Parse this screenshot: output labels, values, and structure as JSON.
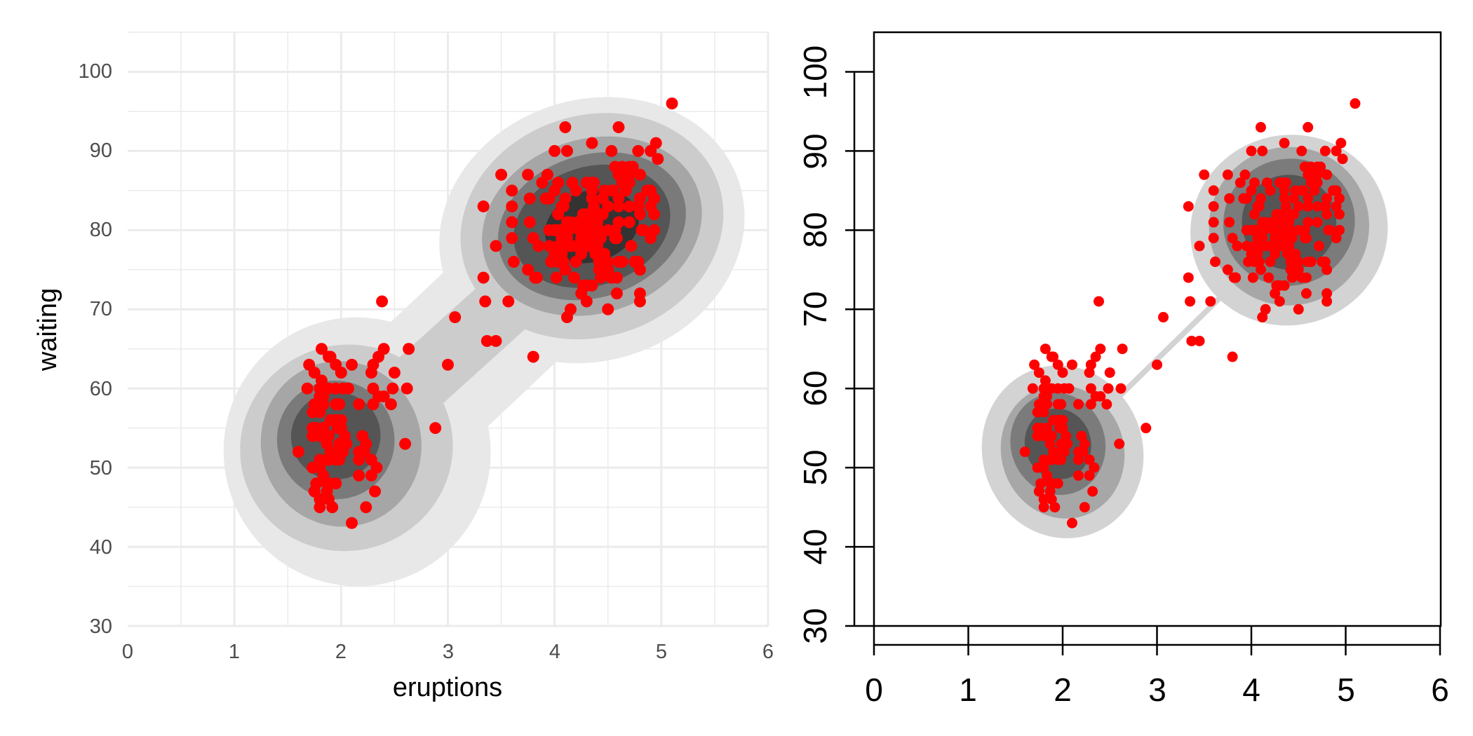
{
  "colors": {
    "background": "#ffffff",
    "grid": "#ebebeb",
    "points": "#ff0000",
    "left_levels": [
      "#e8e8e8",
      "#cccccc",
      "#a6a6a6",
      "#7a7a7a",
      "#555555",
      "#333333"
    ],
    "right_levels": [
      "#d3d3d3",
      "#a7a7a7",
      "#7b7b7b",
      "#555555"
    ]
  },
  "chart_data": [
    {
      "id": "left",
      "type": "scatter",
      "overlay": "filled density contours",
      "style": "ggplot minimal",
      "title": "",
      "xlabel": "eruptions",
      "ylabel": "waiting",
      "xlim": [
        0,
        6
      ],
      "ylim": [
        30,
        105
      ],
      "xticks": [
        "0",
        "1",
        "2",
        "3",
        "4",
        "5",
        "6"
      ],
      "yticks": [
        "30",
        "40",
        "50",
        "60",
        "70",
        "80",
        "90",
        "100"
      ],
      "grid": true
    },
    {
      "id": "right",
      "type": "scatter",
      "overlay": "filled density contours",
      "style": "base graphics boxed",
      "title": "",
      "xlabel": "",
      "ylabel": "",
      "xlim": [
        0,
        6
      ],
      "ylim": [
        30,
        105
      ],
      "xticks": [
        "0",
        "1",
        "2",
        "3",
        "4",
        "5",
        "6"
      ],
      "yticks": [
        "30",
        "40",
        "50",
        "60",
        "70",
        "80",
        "90",
        "100"
      ],
      "grid": false
    }
  ],
  "points": [
    [
      3.6,
      79
    ],
    [
      1.8,
      54
    ],
    [
      3.333,
      74
    ],
    [
      2.283,
      62
    ],
    [
      4.533,
      85
    ],
    [
      2.883,
      55
    ],
    [
      4.7,
      88
    ],
    [
      3.6,
      85
    ],
    [
      1.95,
      51
    ],
    [
      4.35,
      85
    ],
    [
      1.833,
      54
    ],
    [
      3.917,
      84
    ],
    [
      4.2,
      78
    ],
    [
      1.75,
      47
    ],
    [
      4.7,
      83
    ],
    [
      2.167,
      52
    ],
    [
      1.75,
      62
    ],
    [
      4.8,
      84
    ],
    [
      1.6,
      52
    ],
    [
      4.25,
      79
    ],
    [
      1.8,
      51
    ],
    [
      1.75,
      47
    ],
    [
      3.45,
      78
    ],
    [
      3.067,
      69
    ],
    [
      4.533,
      74
    ],
    [
      3.6,
      83
    ],
    [
      1.967,
      55
    ],
    [
      4.083,
      76
    ],
    [
      3.85,
      78
    ],
    [
      4.433,
      79
    ],
    [
      4.3,
      73
    ],
    [
      4.467,
      77
    ],
    [
      3.367,
      66
    ],
    [
      4.033,
      80
    ],
    [
      3.833,
      74
    ],
    [
      2.017,
      52
    ],
    [
      1.867,
      48
    ],
    [
      4.833,
      80
    ],
    [
      1.833,
      59
    ],
    [
      4.783,
      90
    ],
    [
      1.733,
      54
    ],
    [
      1.883,
      60
    ],
    [
      4.967,
      89
    ],
    [
      1.917,
      45
    ],
    [
      3.5,
      87
    ],
    [
      4.8,
      87
    ],
    [
      4.1,
      93
    ],
    [
      1.8,
      54
    ],
    [
      4.633,
      86
    ],
    [
      1.95,
      48
    ],
    [
      4.6,
      93
    ],
    [
      1.733,
      57
    ],
    [
      4.15,
      81
    ],
    [
      1.983,
      58
    ],
    [
      4.4,
      81
    ],
    [
      4.6,
      84
    ],
    [
      1.8,
      50
    ],
    [
      4.567,
      88
    ],
    [
      1.683,
      60
    ],
    [
      4.15,
      78
    ],
    [
      1.8,
      57
    ],
    [
      5.1,
      96
    ],
    [
      2.3,
      63
    ],
    [
      4.633,
      76
    ],
    [
      3.967,
      76
    ],
    [
      2.0,
      62
    ],
    [
      4.3,
      71
    ],
    [
      4.35,
      79
    ],
    [
      4.0,
      80
    ],
    [
      1.817,
      58
    ],
    [
      4.7,
      86
    ],
    [
      1.883,
      46
    ],
    [
      4.45,
      75
    ],
    [
      4.25,
      72
    ],
    [
      1.8,
      58
    ],
    [
      4.117,
      69
    ],
    [
      2.6,
      53
    ],
    [
      4.35,
      81
    ],
    [
      4.033,
      76
    ],
    [
      1.9,
      52
    ],
    [
      4.633,
      88
    ],
    [
      2.35,
      59
    ],
    [
      4.333,
      78
    ],
    [
      1.833,
      49
    ],
    [
      4.8,
      84
    ],
    [
      3.45,
      66
    ],
    [
      2.383,
      71
    ],
    [
      3.0,
      63
    ],
    [
      4.583,
      74
    ],
    [
      4.033,
      86
    ],
    [
      1.95,
      60
    ],
    [
      4.9,
      83
    ],
    [
      2.167,
      49
    ],
    [
      4.4,
      78
    ],
    [
      4.067,
      83
    ],
    [
      1.883,
      64
    ],
    [
      2.4,
      59
    ],
    [
      4.1,
      84
    ],
    [
      2.017,
      60
    ],
    [
      4.783,
      83
    ],
    [
      2.35,
      64
    ],
    [
      4.3,
      86
    ],
    [
      4.383,
      77
    ],
    [
      2.283,
      49
    ],
    [
      4.0,
      85
    ],
    [
      1.7,
      63
    ],
    [
      4.933,
      80
    ],
    [
      1.983,
      53
    ],
    [
      3.883,
      86
    ],
    [
      2.2,
      54
    ],
    [
      4.5,
      80
    ],
    [
      4.2,
      76
    ],
    [
      3.8,
      64
    ],
    [
      3.567,
      71
    ],
    [
      4.95,
      91
    ],
    [
      4.117,
      81
    ],
    [
      2.0,
      55
    ],
    [
      4.183,
      74
    ],
    [
      2.167,
      51
    ],
    [
      4.117,
      90
    ],
    [
      4.567,
      80
    ],
    [
      4.75,
      76
    ],
    [
      4.35,
      91
    ],
    [
      1.9,
      48
    ],
    [
      4.867,
      85
    ],
    [
      1.733,
      55
    ],
    [
      4.35,
      73
    ],
    [
      4.333,
      82
    ],
    [
      1.867,
      53
    ],
    [
      4.5,
      83
    ],
    [
      4.933,
      84
    ],
    [
      1.983,
      52
    ],
    [
      4.333,
      80
    ],
    [
      4.8,
      84
    ],
    [
      4.5,
      75
    ],
    [
      4.0,
      90
    ],
    [
      3.6,
      81
    ],
    [
      4.45,
      82
    ],
    [
      4.5,
      76
    ],
    [
      4.783,
      76
    ],
    [
      4.133,
      80
    ],
    [
      4.217,
      81
    ],
    [
      1.733,
      54
    ],
    [
      1.95,
      58
    ],
    [
      4.067,
      80
    ],
    [
      4.45,
      84
    ],
    [
      4.25,
      81
    ],
    [
      1.983,
      51
    ],
    [
      3.75,
      87
    ],
    [
      2.0,
      56
    ],
    [
      4.417,
      79
    ],
    [
      4.417,
      76
    ],
    [
      4.9,
      85
    ],
    [
      4.0,
      80
    ],
    [
      3.35,
      71
    ],
    [
      4.383,
      77
    ],
    [
      4.267,
      73
    ],
    [
      2.233,
      53
    ],
    [
      4.633,
      87
    ],
    [
      3.767,
      81
    ],
    [
      1.833,
      55
    ],
    [
      2.1,
      63
    ],
    [
      4.167,
      86
    ],
    [
      3.95,
      80
    ],
    [
      4.733,
      88
    ],
    [
      4.017,
      80
    ],
    [
      2.467,
      58
    ],
    [
      4.4,
      78
    ],
    [
      4.25,
      77
    ],
    [
      1.883,
      51
    ],
    [
      4.1,
      75
    ],
    [
      4.367,
      83
    ],
    [
      1.867,
      47
    ],
    [
      4.467,
      85
    ],
    [
      1.95,
      56
    ],
    [
      4.133,
      78
    ],
    [
      4.667,
      85
    ],
    [
      1.85,
      54
    ],
    [
      4.567,
      79
    ],
    [
      2.167,
      58
    ],
    [
      4.817,
      80
    ],
    [
      1.767,
      48
    ],
    [
      4.233,
      80
    ],
    [
      4.367,
      79
    ],
    [
      1.733,
      50
    ],
    [
      4.3,
      78
    ],
    [
      2.3,
      60
    ],
    [
      4.75,
      76
    ],
    [
      3.617,
      76
    ],
    [
      1.75,
      58
    ],
    [
      4.083,
      83
    ],
    [
      1.8,
      45
    ],
    [
      3.833,
      74
    ],
    [
      4.033,
      82
    ],
    [
      2.283,
      51
    ],
    [
      4.55,
      85
    ],
    [
      4.35,
      84
    ],
    [
      2.5,
      62
    ],
    [
      4.083,
      80
    ],
    [
      3.75,
      75
    ],
    [
      1.8,
      60
    ],
    [
      4.117,
      80
    ],
    [
      4.333,
      81
    ],
    [
      1.833,
      55
    ],
    [
      4.05,
      80
    ],
    [
      3.917,
      84
    ],
    [
      4.2,
      85
    ],
    [
      2.217,
      52
    ],
    [
      4.8,
      82
    ],
    [
      1.867,
      51
    ],
    [
      4.433,
      82
    ],
    [
      1.9,
      56
    ],
    [
      4.433,
      74
    ],
    [
      2.0,
      55
    ],
    [
      4.933,
      82
    ],
    [
      1.833,
      58
    ],
    [
      4.8,
      71
    ],
    [
      4.6,
      83
    ],
    [
      2.05,
      53
    ],
    [
      4.067,
      79
    ],
    [
      4.583,
      72
    ],
    [
      2.233,
      45
    ],
    [
      3.817,
      74
    ],
    [
      1.8,
      59
    ],
    [
      4.0,
      77
    ],
    [
      4.6,
      81
    ],
    [
      2.033,
      54
    ],
    [
      4.367,
      86
    ],
    [
      3.8,
      79
    ],
    [
      2.1,
      43
    ],
    [
      4.35,
      86
    ],
    [
      1.817,
      65
    ],
    [
      4.6,
      87
    ],
    [
      4.067,
      77
    ],
    [
      4.9,
      90
    ],
    [
      1.833,
      55
    ],
    [
      4.267,
      82
    ],
    [
      4.283,
      73
    ],
    [
      4.533,
      90
    ],
    [
      4.5,
      70
    ],
    [
      4.8,
      72
    ],
    [
      4.033,
      76
    ],
    [
      1.8,
      46
    ],
    [
      4.4,
      80
    ],
    [
      4.8,
      75
    ],
    [
      1.95,
      63
    ],
    [
      4.017,
      74
    ],
    [
      2.633,
      65
    ],
    [
      1.767,
      55
    ],
    [
      4.3,
      79
    ],
    [
      2.617,
      60
    ],
    [
      4.9,
      79
    ],
    [
      4.417,
      75
    ],
    [
      1.9,
      64
    ],
    [
      4.717,
      78
    ],
    [
      4.6,
      76
    ],
    [
      4.417,
      80
    ],
    [
      1.9,
      52
    ],
    [
      4.033,
      78
    ],
    [
      3.933,
      87
    ],
    [
      4.05,
      78
    ],
    [
      2.483,
      60
    ],
    [
      4.7,
      81
    ],
    [
      3.95,
      78
    ],
    [
      2.317,
      47
    ],
    [
      3.333,
      83
    ],
    [
      4.15,
      70
    ],
    [
      1.883,
      51
    ],
    [
      2.333,
      50
    ],
    [
      4.583,
      79
    ],
    [
      3.95,
      84
    ],
    [
      2.3,
      58
    ],
    [
      3.767,
      84
    ],
    [
      4.117,
      79
    ],
    [
      1.883,
      54
    ],
    [
      2.4,
      65
    ],
    [
      1.817,
      61
    ],
    [
      4.3,
      82
    ],
    [
      4.7,
      87
    ],
    [
      2.067,
      60
    ]
  ]
}
